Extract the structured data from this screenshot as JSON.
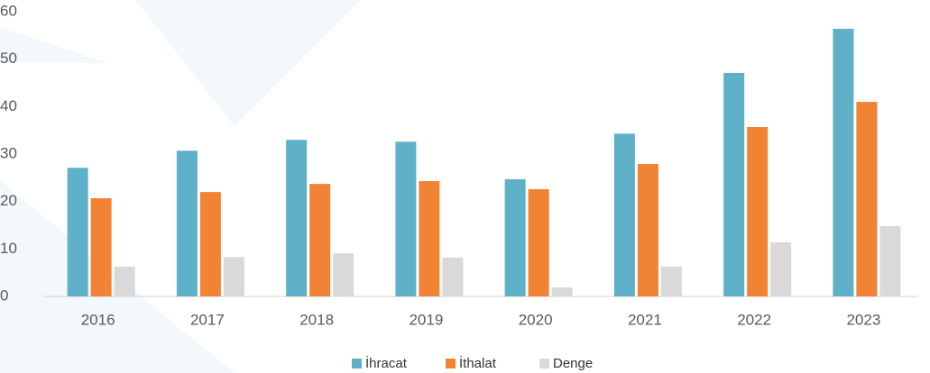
{
  "chart_data": {
    "type": "bar",
    "categories": [
      "2016",
      "2017",
      "2018",
      "2019",
      "2020",
      "2021",
      "2022",
      "2023"
    ],
    "series": [
      {
        "name": "İhracat",
        "color": "#5fb0c9",
        "values": [
          27.1,
          30.7,
          33.0,
          32.6,
          24.7,
          34.3,
          47.1,
          56.4
        ]
      },
      {
        "name": "İthalat",
        "color": "#f08434",
        "values": [
          20.7,
          22.0,
          23.7,
          24.3,
          22.6,
          27.9,
          35.7,
          41.0
        ]
      },
      {
        "name": "Denge",
        "color": "#d9d9d9",
        "values": [
          6.3,
          8.3,
          9.1,
          8.2,
          1.9,
          6.3,
          11.4,
          14.8
        ]
      }
    ],
    "ylim": [
      0,
      60
    ],
    "yticks": [
      0,
      10,
      20,
      30,
      40,
      50,
      60
    ],
    "grid": false,
    "legend": "bottom"
  }
}
